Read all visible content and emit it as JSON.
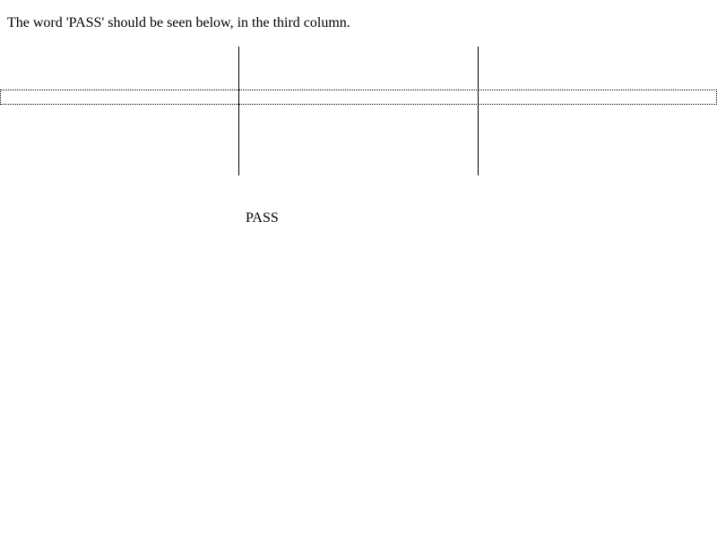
{
  "instruction": {
    "text": "The word 'PASS' should be seen below, in the third column."
  },
  "result": {
    "text": "PASS"
  }
}
